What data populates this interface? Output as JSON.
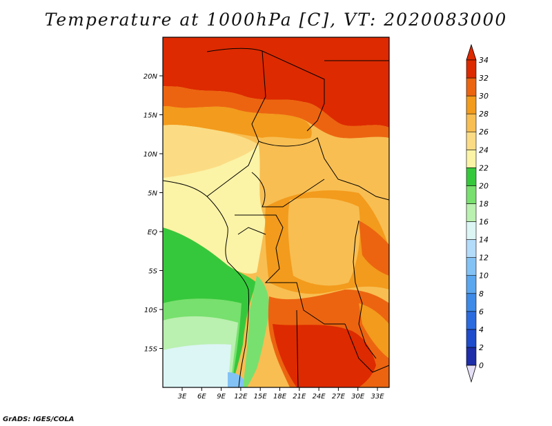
{
  "title": "Temperature at 1000hPa [C], VT: 2020083000",
  "footer": "GrADS: IGES/COLA",
  "map": {
    "lon_ticks": [
      "3E",
      "6E",
      "9E",
      "12E",
      "15E",
      "18E",
      "21E",
      "24E",
      "27E",
      "30E",
      "33E"
    ],
    "lat_ticks": [
      "20N",
      "15N",
      "10N",
      "5N",
      "EQ",
      "5S",
      "10S",
      "15S"
    ]
  },
  "colorbar": {
    "labels": [
      "0",
      "2",
      "4",
      "6",
      "8",
      "10",
      "12",
      "14",
      "16",
      "18",
      "20",
      "22",
      "24",
      "26",
      "28",
      "30",
      "32",
      "34"
    ],
    "colors": [
      "#1a1a80",
      "#1e2da8",
      "#1f4ccc",
      "#2b6be0",
      "#3d8ae8",
      "#5aa6ef",
      "#83c2f5",
      "#b3dcfa",
      "#dcf5f5",
      "#baf0b0",
      "#78e06e",
      "#36c83c",
      "#fbf3a6",
      "#fbdc84",
      "#f8be52",
      "#f39b1c",
      "#ec6410",
      "#dd2a00"
    ]
  }
}
